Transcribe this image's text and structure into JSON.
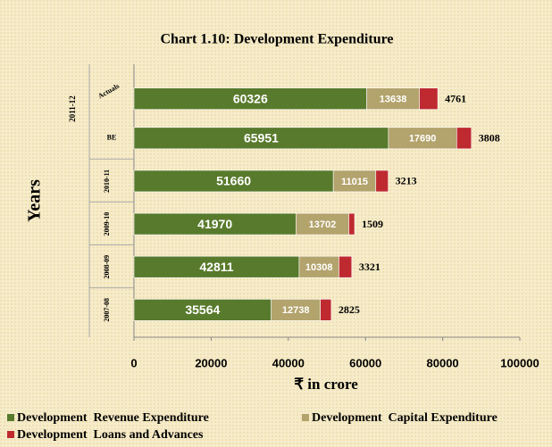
{
  "chart_data": {
    "type": "stacked-bar-horizontal",
    "title": "Chart 1.10: Development Expenditure",
    "y_axis_label": "Years",
    "x_axis_label": "₹ in crore",
    "group_label": "2011-12",
    "categories": [
      "Actuals",
      "BE",
      "2010-11",
      "2009-10",
      "2008-09",
      "2007-08"
    ],
    "series": [
      {
        "name": "Development  Revenue Expenditure",
        "color": "#587a2c",
        "values": [
          60326,
          65951,
          51660,
          41970,
          42811,
          35564
        ]
      },
      {
        "name": "Development  Capital Expenditure",
        "color": "#b3a36c",
        "values": [
          13638,
          17690,
          11015,
          13702,
          10308,
          12738
        ]
      },
      {
        "name": "Development  Loans and Advances",
        "color": "#be2a30",
        "values": [
          4761,
          3808,
          3213,
          1509,
          3321,
          2825
        ]
      }
    ],
    "xlim": [
      0,
      100000
    ],
    "xticks": [
      0,
      20000,
      40000,
      60000,
      80000,
      100000
    ],
    "legend": "bottom"
  }
}
